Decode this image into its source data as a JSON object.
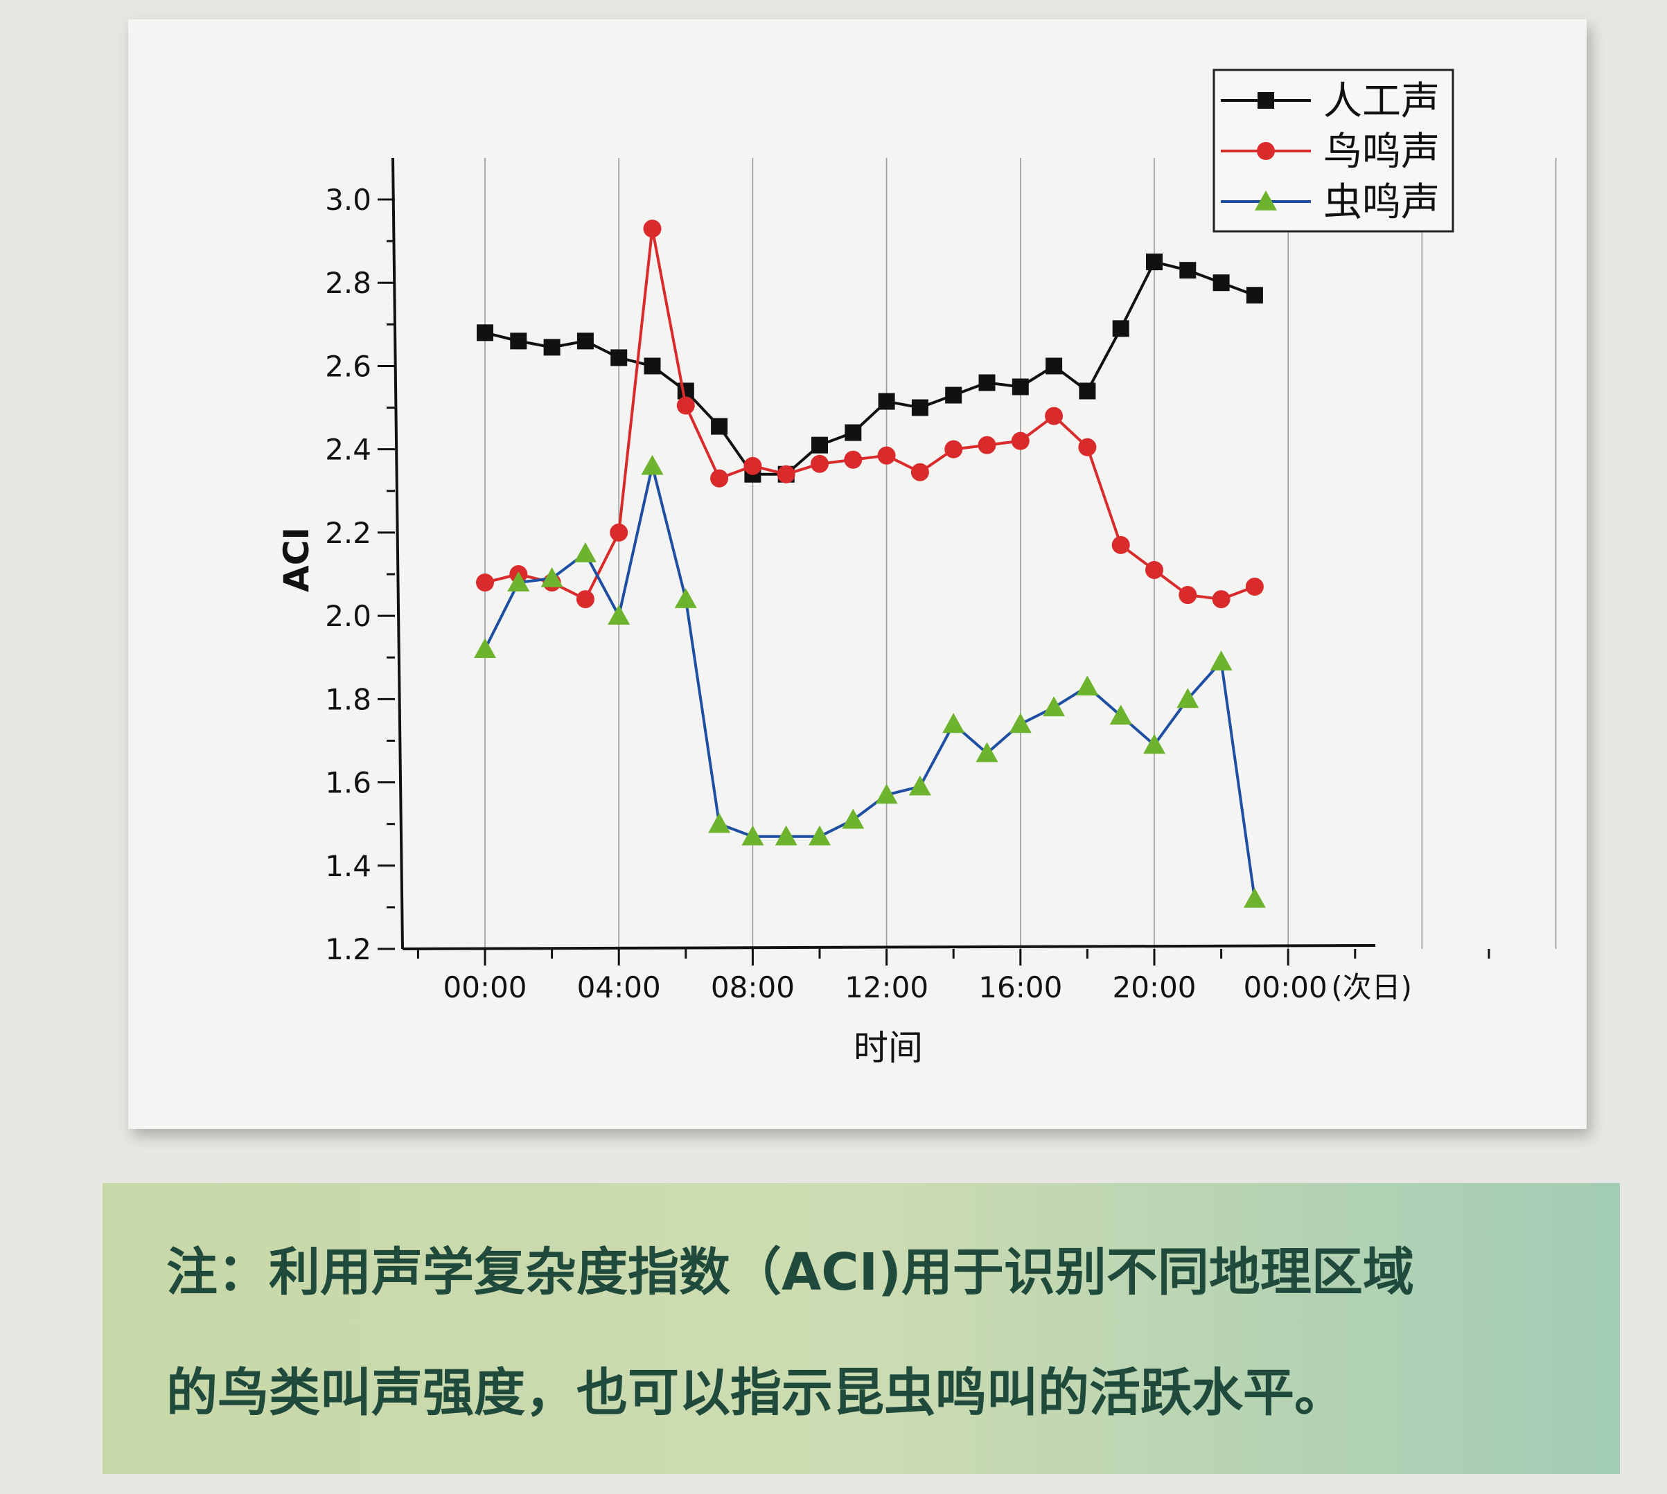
{
  "chart_data": {
    "type": "line",
    "xlabel": "时间",
    "ylabel": "ACI",
    "ylim": [
      1.2,
      3.1
    ],
    "yticks": [
      "1.2",
      "1.4",
      "1.6",
      "1.8",
      "2.0",
      "2.2",
      "2.4",
      "2.6",
      "2.8",
      "3.0"
    ],
    "xlim_hours": [
      -2,
      33
    ],
    "xticks": [
      {
        "hour": 0,
        "label": "00:00"
      },
      {
        "hour": 4,
        "label": "04:00"
      },
      {
        "hour": 8,
        "label": "08:00"
      },
      {
        "hour": 12,
        "label": "12:00"
      },
      {
        "hour": 16,
        "label": "16:00"
      },
      {
        "hour": 20,
        "label": "20:00"
      },
      {
        "hour": 24,
        "label": "00:00",
        "suffix": "(次日)"
      }
    ],
    "x_hours": [
      0,
      1,
      2,
      3,
      4,
      5,
      6,
      7,
      8,
      9,
      10,
      11,
      12,
      13,
      14,
      15,
      16,
      17,
      18,
      19,
      20,
      21,
      22,
      23
    ],
    "series": [
      {
        "name": "人工声",
        "color": "#111111",
        "marker": "square",
        "values": [
          2.68,
          2.66,
          2.645,
          2.66,
          2.62,
          2.6,
          2.54,
          2.455,
          2.34,
          2.34,
          2.41,
          2.44,
          2.515,
          2.5,
          2.53,
          2.56,
          2.55,
          2.6,
          2.54,
          2.69,
          2.85,
          2.83,
          2.8,
          2.77
        ]
      },
      {
        "name": "鸟鸣声",
        "color": "#d92b2b",
        "marker": "circle",
        "values": [
          2.08,
          2.1,
          2.08,
          2.04,
          2.2,
          2.93,
          2.505,
          2.33,
          2.36,
          2.34,
          2.365,
          2.375,
          2.385,
          2.345,
          2.4,
          2.41,
          2.42,
          2.48,
          2.405,
          2.17,
          2.11,
          2.05,
          2.04,
          2.07
        ]
      },
      {
        "name": "虫鸣声",
        "color": "#1e4fa3",
        "marker": "triangle",
        "marker_fill": "#6db32d",
        "values": [
          1.92,
          2.08,
          2.09,
          2.15,
          2.0,
          2.36,
          2.04,
          1.5,
          1.47,
          1.47,
          1.47,
          1.51,
          1.57,
          1.59,
          1.74,
          1.67,
          1.74,
          1.78,
          1.83,
          1.76,
          1.69,
          1.8,
          1.89,
          1.32
        ]
      }
    ],
    "grid": "vertical",
    "legend_position": "top-right"
  },
  "note": {
    "line1": "注：利用声学复杂度指数（ACI)用于识别不同地理区域",
    "line2": "的鸟类叫声强度，也可以指示昆虫鸣叫的活跃水平。"
  }
}
